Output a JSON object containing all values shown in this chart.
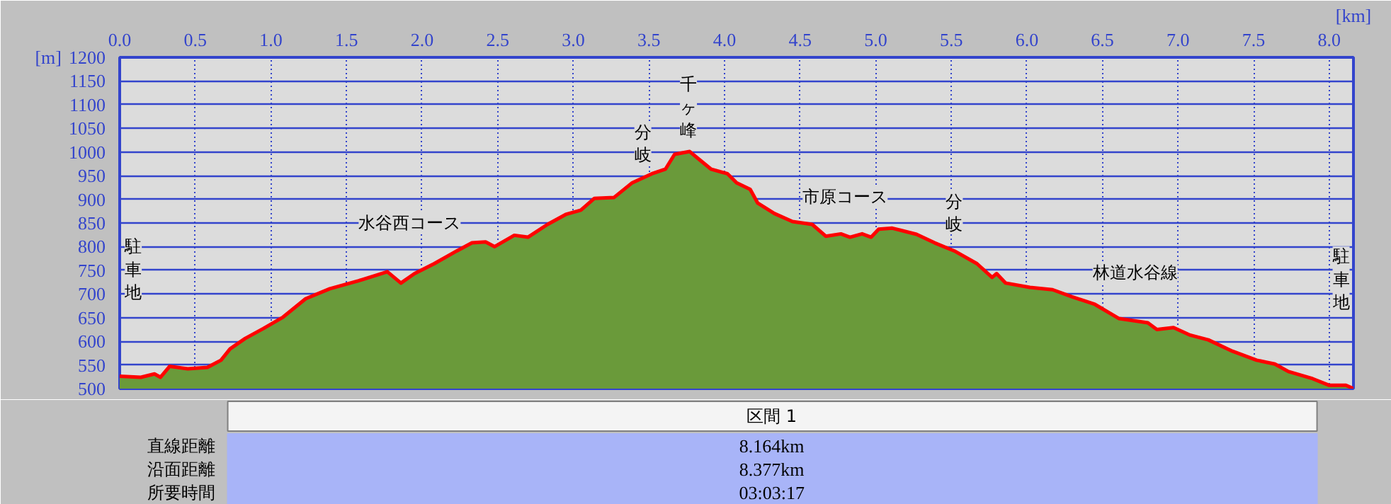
{
  "chart_data": {
    "type": "area",
    "xlabel": "[km]",
    "ylabel": "[m]",
    "x": [
      0,
      0.14,
      0.23,
      0.27,
      0.33,
      0.45,
      0.58,
      0.67,
      0.73,
      0.83,
      0.95,
      1.08,
      1.23,
      1.39,
      1.58,
      1.7,
      1.77,
      1.86,
      1.95,
      2.08,
      2.23,
      2.33,
      2.42,
      2.48,
      2.61,
      2.7,
      2.83,
      2.95,
      3.05,
      3.14,
      3.27,
      3.39,
      3.52,
      3.61,
      3.67,
      3.77,
      3.83,
      3.91,
      4.02,
      4.08,
      4.17,
      4.22,
      4.33,
      4.45,
      4.58,
      4.67,
      4.77,
      4.83,
      4.91,
      4.97,
      5.02,
      5.11,
      5.27,
      5.39,
      5.52,
      5.67,
      5.77,
      5.8,
      5.86,
      6.02,
      6.17,
      6.3,
      6.45,
      6.61,
      6.8,
      6.86,
      6.97,
      7.08,
      7.2,
      7.36,
      7.52,
      7.64,
      7.73,
      7.89,
      8.0,
      8.11,
      8.16
    ],
    "series": [
      {
        "color": "#6a9a3a",
        "values": [
          526,
          524,
          531,
          524,
          547,
          542,
          545,
          560,
          584,
          606,
          627,
          651,
          690,
          711,
          728,
          740,
          747,
          723,
          743,
          764,
          791,
          808,
          810,
          800,
          824,
          820,
          847,
          868,
          877,
          902,
          904,
          935,
          954,
          964,
          995,
          1001,
          985,
          964,
          954,
          935,
          921,
          892,
          870,
          853,
          847,
          822,
          827,
          820,
          827,
          820,
          837,
          839,
          826,
          808,
          791,
          764,
          735,
          743,
          723,
          714,
          709,
          694,
          678,
          648,
          639,
          625,
          629,
          613,
          603,
          579,
          560,
          552,
          536,
          521,
          507,
          507,
          500
        ]
      }
    ],
    "xlim": [
      0,
      8.16
    ],
    "ylim": [
      500,
      1200
    ],
    "xticks": [
      {
        "value": 0,
        "label": "0.0"
      },
      0.5,
      {
        "value": 1,
        "label": "1.0"
      },
      1.5,
      {
        "value": 2,
        "label": "2.0"
      },
      2.5,
      {
        "value": 3,
        "label": "3.0"
      },
      3.5,
      {
        "value": 4,
        "label": "4.0"
      },
      4.5,
      {
        "value": 5,
        "label": "5.0"
      },
      5.5,
      {
        "value": 6,
        "label": "6.0"
      },
      6.5,
      {
        "value": 7,
        "label": "7.0"
      },
      7.5,
      {
        "value": 8,
        "label": "8.0"
      }
    ],
    "yticks": [
      500,
      550,
      600,
      650,
      700,
      750,
      800,
      850,
      900,
      950,
      1000,
      1050,
      1100,
      1150,
      1200
    ],
    "grid": true,
    "marker": "none",
    "line_style": "solid",
    "annotations": [
      {
        "text": "分岐",
        "x": 3.46,
        "y": 1017
      },
      {
        "text": "分岐",
        "x": 5.52,
        "y": 871
      },
      "千ヶ峰",
      "駐車地",
      "水谷西コース",
      "市原コース",
      "林道水谷線",
      "駐車地",
      "区間 1",
      "直線距離",
      "8.164km",
      "沿面距離",
      "8.377km",
      "所要時間",
      "03:03:17"
    ]
  }
}
